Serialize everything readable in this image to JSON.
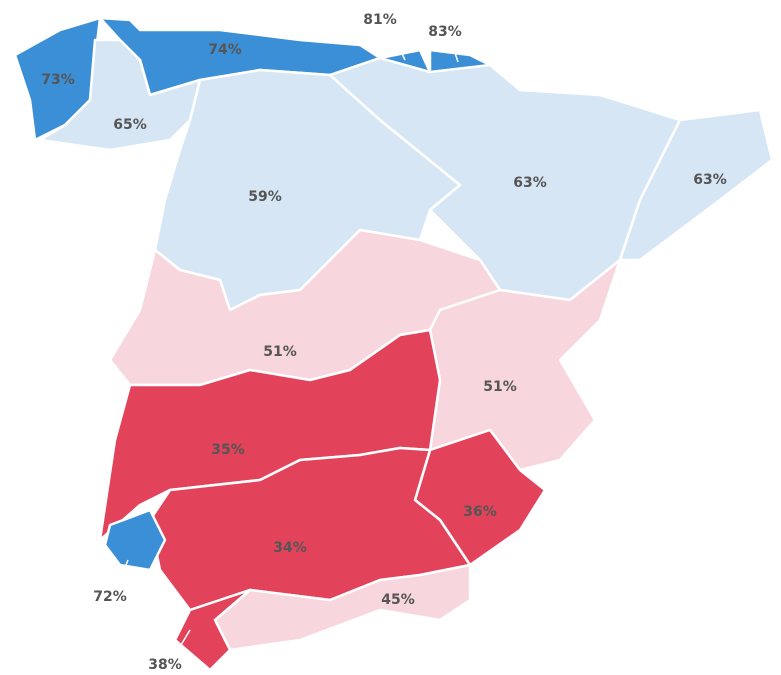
{
  "regions": [
    {
      "label": "73%",
      "color": "#3b8fd6"
    },
    {
      "label": "74%",
      "color": "#3b8fd6"
    },
    {
      "label": "81%",
      "color": "#3b8fd6"
    },
    {
      "label": "83%",
      "color": "#3b8fd6"
    },
    {
      "label": "65%",
      "color": "#d6e6f4"
    },
    {
      "label": "59%",
      "color": "#d6e6f4"
    },
    {
      "label": "63%",
      "color": "#d6e6f4"
    },
    {
      "label": "63%",
      "color": "#d6e6f4"
    },
    {
      "label": "51%",
      "color": "#f7d6dd"
    },
    {
      "label": "51%",
      "color": "#f7d6dd"
    },
    {
      "label": "35%",
      "color": "#e2435a"
    },
    {
      "label": "36%",
      "color": "#e2435a"
    },
    {
      "label": "34%",
      "color": "#e2435a"
    },
    {
      "label": "45%",
      "color": "#f7d6dd"
    },
    {
      "label": "38%",
      "color": "#e2435a"
    },
    {
      "label": "72%",
      "color": "#3b8fd6"
    }
  ]
}
